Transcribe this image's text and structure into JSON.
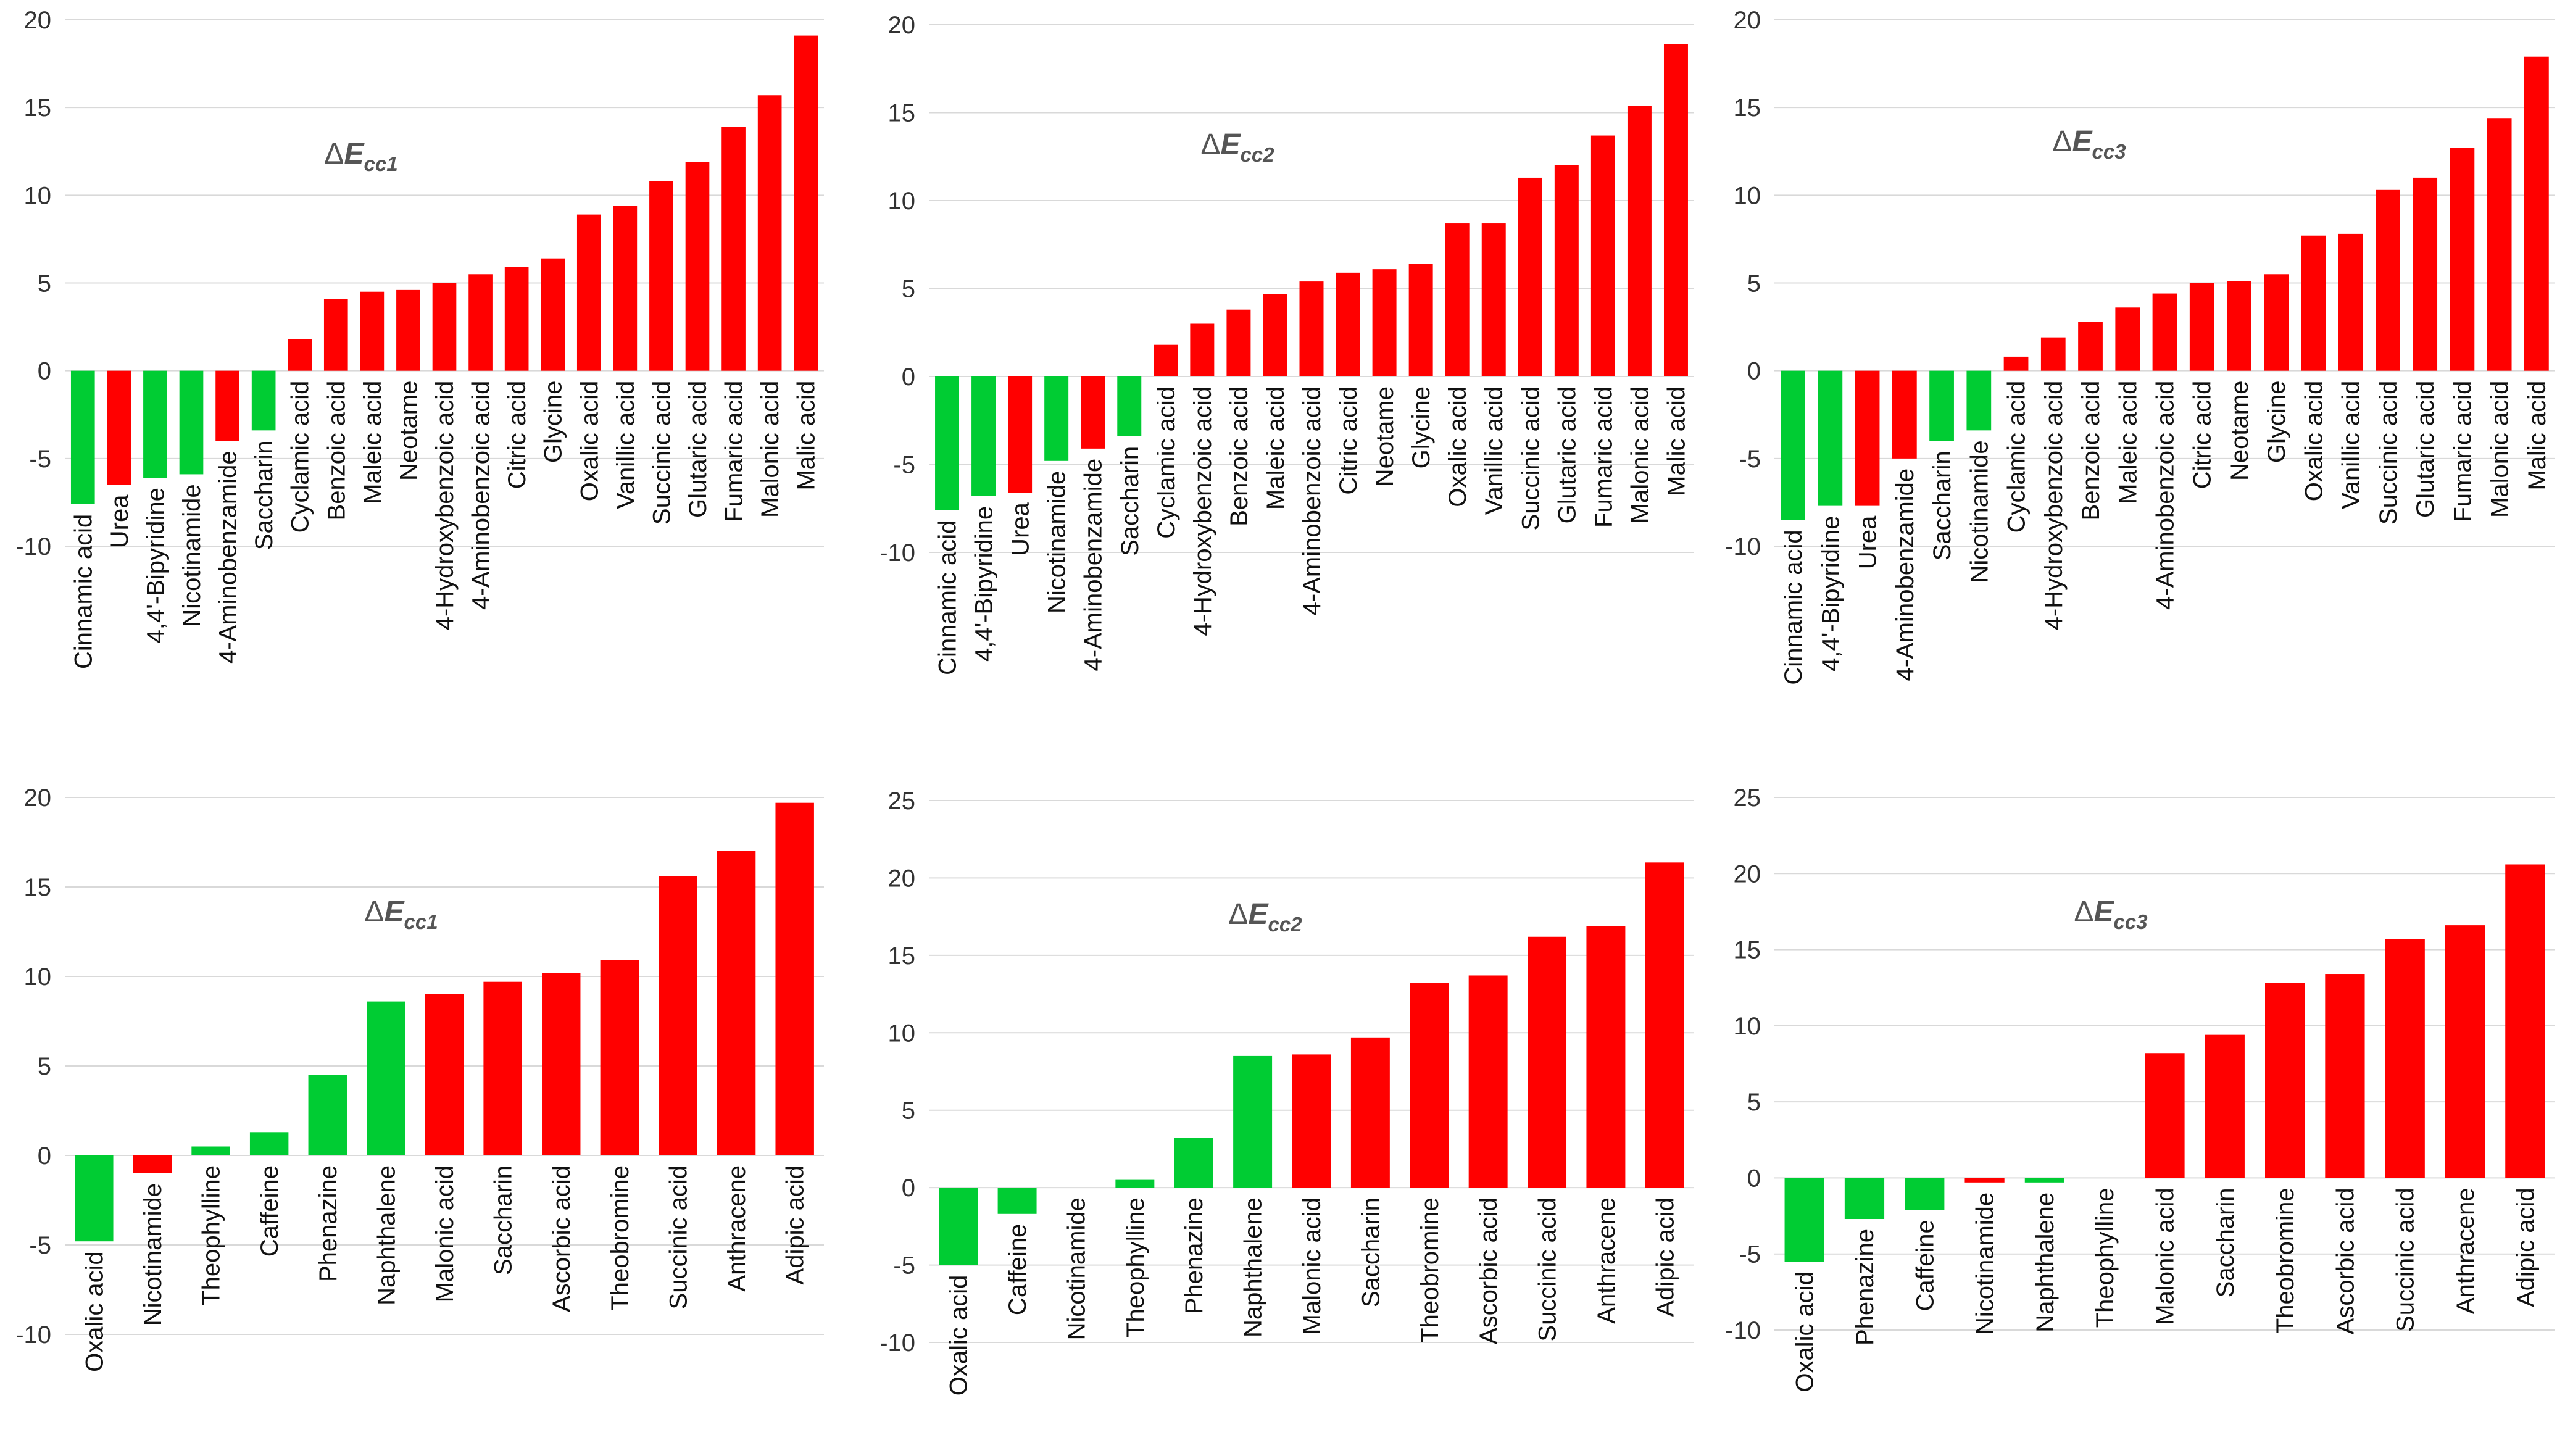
{
  "colors": {
    "positive": "#ff0000",
    "negative": "#00cc33",
    "grid": "#d9d9d9",
    "text": "#333333"
  },
  "chart_data": [
    {
      "type": "bar",
      "title": "ΔEcc1",
      "title_symbol": "Δ",
      "title_var": "E",
      "title_sub": "cc1",
      "xlabel": "",
      "ylabel": "",
      "ylim": [
        -10,
        20
      ],
      "yticks": [
        -10,
        -5,
        0,
        5,
        10,
        15,
        20
      ],
      "grid": true,
      "categories": [
        "Cinnamic acid",
        "Urea",
        "4,4'-Bipyridine",
        "Nicotinamide",
        "4-Aminobenzamide",
        "Saccharin",
        "Cyclamic acid",
        "Benzoic acid",
        "Maleic acid",
        "Neotame",
        "4-Hydroxybenzoic acid",
        "4-Aminobenzoic acid",
        "Citric acid",
        "Glycine",
        "Oxalic acid",
        "Vanillic acid",
        "Succinic acid",
        "Glutaric acid",
        "Fumaric acid",
        "Malonic acid",
        "Malic acid"
      ],
      "values": [
        -7.6,
        -6.5,
        -6.1,
        -5.9,
        -4.0,
        -3.4,
        1.8,
        4.1,
        4.5,
        4.6,
        5.0,
        5.5,
        5.9,
        6.4,
        8.9,
        9.4,
        10.8,
        11.9,
        13.9,
        15.7,
        19.1
      ],
      "colors": [
        "green",
        "red",
        "green",
        "green",
        "red",
        "green",
        "red",
        "red",
        "red",
        "red",
        "red",
        "red",
        "red",
        "red",
        "red",
        "red",
        "red",
        "red",
        "red",
        "red",
        "red"
      ]
    },
    {
      "type": "bar",
      "title": "ΔEcc2",
      "title_symbol": "Δ",
      "title_var": "E",
      "title_sub": "cc2",
      "xlabel": "",
      "ylabel": "",
      "ylim": [
        -10,
        20
      ],
      "yticks": [
        -10,
        -5,
        0,
        5,
        10,
        15,
        20
      ],
      "grid": true,
      "categories": [
        "Cinnamic acid",
        "4,4'-Bipyridine",
        "Urea",
        "Nicotinamide",
        "4-Aminobenzamide",
        "Saccharin",
        "Cyclamic acid",
        "4-Hydroxybenzoic acid",
        "Benzoic acid",
        "Maleic acid",
        "4-Aminobenzoic acid",
        "Citric acid",
        "Neotame",
        "Glycine",
        "Oxalic acid",
        "Vanillic acid",
        "Succinic acid",
        "Glutaric acid",
        "Fumaric acid",
        "Malonic acid",
        "Malic acid"
      ],
      "values": [
        -7.6,
        -6.8,
        -6.6,
        -4.8,
        -4.1,
        -3.4,
        1.8,
        3.0,
        3.8,
        4.7,
        5.4,
        5.9,
        6.1,
        6.4,
        8.7,
        8.7,
        11.3,
        12.0,
        13.7,
        15.4,
        18.9
      ],
      "colors": [
        "green",
        "green",
        "red",
        "green",
        "red",
        "green",
        "red",
        "red",
        "red",
        "red",
        "red",
        "red",
        "red",
        "red",
        "red",
        "red",
        "red",
        "red",
        "red",
        "red",
        "red"
      ]
    },
    {
      "type": "bar",
      "title": "ΔEcc3",
      "title_symbol": "Δ",
      "title_var": "E",
      "title_sub": "cc3",
      "xlabel": "",
      "ylabel": "",
      "ylim": [
        -10,
        20
      ],
      "yticks": [
        -10,
        -5,
        0,
        5,
        10,
        15,
        20
      ],
      "grid": true,
      "categories": [
        "Cinnamic acid",
        "4,4'-Bipyridine",
        "Urea",
        "4-Aminobenzamide",
        "Saccharin",
        "Nicotinamide",
        "Cyclamic acid",
        "4-Hydroxybenzoic acid",
        "Benzoic acid",
        "Maleic acid",
        "4-Aminobenzoic acid",
        "Citric acid",
        "Neotame",
        "Glycine",
        "Oxalic acid",
        "Vanillic acid",
        "Succinic acid",
        "Glutaric acid",
        "Fumaric acid",
        "Malonic acid",
        "Malic acid"
      ],
      "values": [
        -8.5,
        -7.7,
        -7.7,
        -5.0,
        -4.0,
        -3.4,
        0.8,
        1.9,
        2.8,
        3.6,
        4.4,
        5.0,
        5.1,
        5.5,
        7.7,
        7.8,
        10.3,
        11.0,
        12.7,
        14.4,
        17.9
      ],
      "colors": [
        "green",
        "green",
        "red",
        "red",
        "green",
        "green",
        "red",
        "red",
        "red",
        "red",
        "red",
        "red",
        "red",
        "red",
        "red",
        "red",
        "red",
        "red",
        "red",
        "red",
        "red"
      ]
    },
    {
      "type": "bar",
      "title": "ΔEcc1",
      "title_symbol": "Δ",
      "title_var": "E",
      "title_sub": "cc1",
      "xlabel": "",
      "ylabel": "",
      "ylim": [
        -10,
        20
      ],
      "yticks": [
        -10,
        -5,
        0,
        5,
        10,
        15,
        20
      ],
      "grid": true,
      "categories": [
        "Oxalic acid",
        "Nicotinamide",
        "Theophylline",
        "Caffeine",
        "Phenazine",
        "Naphthalene",
        "Malonic acid",
        "Saccharin",
        "Ascorbic acid",
        "Theobromine",
        "Succinic acid",
        "Anthracene",
        "Adipic acid"
      ],
      "values": [
        -4.8,
        -1.0,
        0.5,
        1.3,
        4.5,
        8.6,
        9.0,
        9.7,
        10.2,
        10.9,
        15.6,
        17.0,
        19.7
      ],
      "colors": [
        "green",
        "red",
        "green",
        "green",
        "green",
        "green",
        "red",
        "red",
        "red",
        "red",
        "red",
        "red",
        "red"
      ]
    },
    {
      "type": "bar",
      "title": "ΔEcc2",
      "title_symbol": "Δ",
      "title_var": "E",
      "title_sub": "cc2",
      "xlabel": "",
      "ylabel": "",
      "ylim": [
        -10,
        25
      ],
      "yticks": [
        -10,
        -5,
        0,
        5,
        10,
        15,
        20,
        25
      ],
      "grid": true,
      "categories": [
        "Oxalic acid",
        "Caffeine",
        "Nicotinamide",
        "Theophylline",
        "Phenazine",
        "Naphthalene",
        "Malonic acid",
        "Saccharin",
        "Theobromine",
        "Ascorbic acid",
        "Succinic acid",
        "Anthracene",
        "Adipic acid"
      ],
      "values": [
        -5.0,
        -1.7,
        0.0,
        0.5,
        3.2,
        8.5,
        8.6,
        9.7,
        13.2,
        13.7,
        16.2,
        16.9,
        21.0
      ],
      "colors": [
        "green",
        "green",
        "green",
        "green",
        "green",
        "green",
        "red",
        "red",
        "red",
        "red",
        "red",
        "red",
        "red"
      ]
    },
    {
      "type": "bar",
      "title": "ΔEcc3",
      "title_symbol": "Δ",
      "title_var": "E",
      "title_sub": "cc3",
      "xlabel": "",
      "ylabel": "",
      "ylim": [
        -10,
        25
      ],
      "yticks": [
        -10,
        -5,
        0,
        5,
        10,
        15,
        20,
        25
      ],
      "grid": true,
      "categories": [
        "Oxalic acid",
        "Phenazine",
        "Caffeine",
        "Nicotinamide",
        "Naphthalene",
        "Theophylline",
        "Malonic acid",
        "Saccharin",
        "Theobromine",
        "Ascorbic acid",
        "Succinic acid",
        "Anthracene",
        "Adipic acid"
      ],
      "values": [
        -5.5,
        -2.7,
        -2.1,
        -0.3,
        -0.3,
        0.0,
        8.2,
        9.4,
        12.8,
        13.4,
        15.7,
        16.6,
        20.6
      ],
      "colors": [
        "green",
        "green",
        "green",
        "red",
        "green",
        "green",
        "red",
        "red",
        "red",
        "red",
        "red",
        "red",
        "red"
      ]
    }
  ]
}
